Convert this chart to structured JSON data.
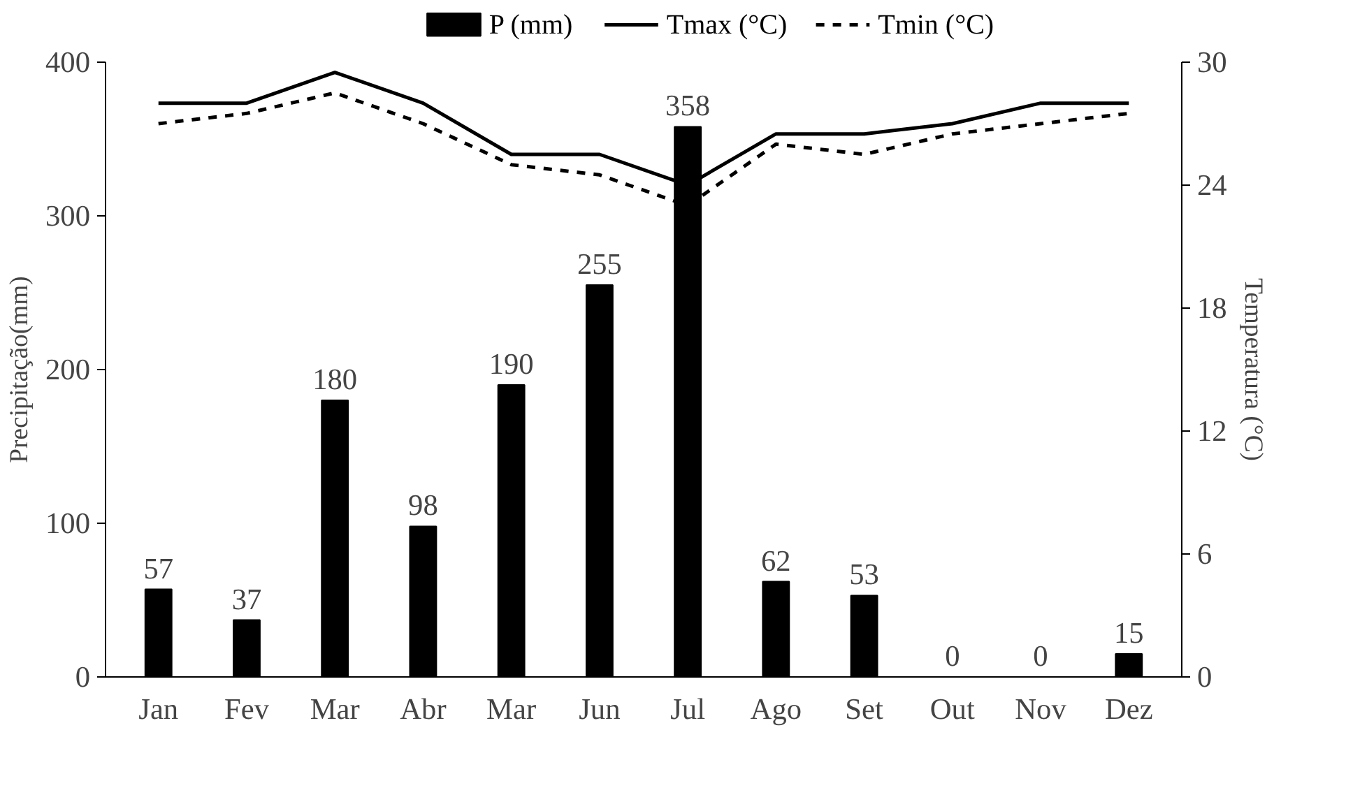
{
  "chart_data": {
    "type": "bar",
    "categories": [
      "Jan",
      "Fev",
      "Mar",
      "Abr",
      "Mar",
      "Jun",
      "Jul",
      "Ago",
      "Set",
      "Out",
      "Nov",
      "Dez"
    ],
    "series": [
      {
        "name": "P (mm)",
        "color": "#000000",
        "values": [
          57,
          37,
          180,
          98,
          190,
          255,
          358,
          62,
          53,
          0,
          0,
          15
        ],
        "value_labels": [
          "57",
          "37",
          "180",
          "98",
          "190",
          "255",
          "358",
          "62",
          "53",
          "0",
          "0",
          "15"
        ]
      },
      {
        "name": "Tmax (°C)",
        "type": "line",
        "axis": "y2",
        "color": "#000000",
        "line_style": "solid",
        "values": [
          28.0,
          28.0,
          29.5,
          28.0,
          25.5,
          25.5,
          24.0,
          26.5,
          26.5,
          27.0,
          28.0,
          28.0
        ]
      },
      {
        "name": "Tmin (°C)",
        "type": "line",
        "axis": "y2",
        "color": "#000000",
        "line_style": "dashed",
        "values": [
          27.0,
          27.5,
          28.5,
          27.0,
          25.0,
          24.5,
          23.0,
          26.0,
          25.5,
          26.5,
          27.0,
          27.5
        ]
      }
    ],
    "ylabel": "Precipitação(mm)",
    "y2label": "Temperatura (°C)",
    "ylim": [
      0,
      400
    ],
    "yticks": [
      0,
      100,
      200,
      300,
      400
    ],
    "y2lim": [
      0,
      30
    ],
    "y2ticks": [
      0,
      6,
      12,
      18,
      24,
      30
    ],
    "legend": "top"
  }
}
